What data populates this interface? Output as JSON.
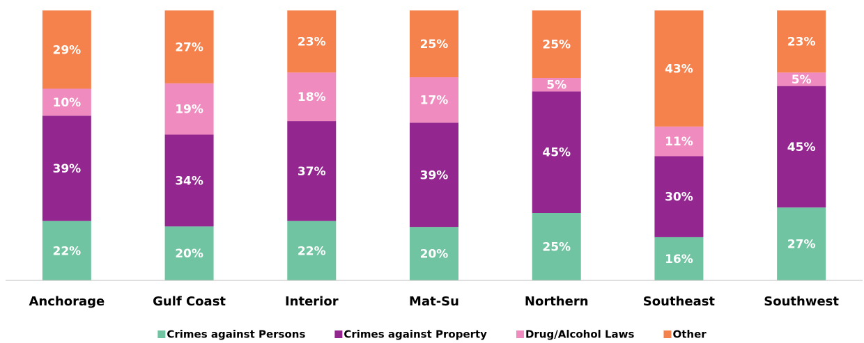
{
  "chart_data": {
    "type": "stacked_bar",
    "categories": [
      "Anchorage",
      "Gulf Coast",
      "Interior",
      "Mat-Su",
      "Northern",
      "Southeast",
      "Southwest"
    ],
    "series": [
      {
        "name": "Crimes against Persons",
        "color": "#70c4a2",
        "values": [
          22,
          20,
          22,
          20,
          25,
          16,
          27
        ],
        "value_labels": [
          "22%",
          "20%",
          "22%",
          "20%",
          "25%",
          "16%",
          "27%"
        ]
      },
      {
        "name": "Crimes against Property",
        "color": "#93278f",
        "values": [
          39,
          34,
          37,
          39,
          45,
          30,
          45
        ],
        "value_labels": [
          "39%",
          "34%",
          "37%",
          "39%",
          "45%",
          "30%",
          "45%"
        ]
      },
      {
        "name": "Drug/Alcohol Laws",
        "color": "#f08bbf",
        "values": [
          10,
          19,
          18,
          17,
          5,
          11,
          5
        ],
        "value_labels": [
          "10%",
          "19%",
          "18%",
          "17%",
          "5%",
          "11%",
          "5%"
        ]
      },
      {
        "name": "Other",
        "color": "#f5814c",
        "values": [
          29,
          27,
          23,
          25,
          25,
          43,
          23
        ],
        "value_labels": [
          "29%",
          "27%",
          "23%",
          "25%",
          "25%",
          "43%",
          "23%"
        ]
      }
    ],
    "legend": "bottom"
  }
}
